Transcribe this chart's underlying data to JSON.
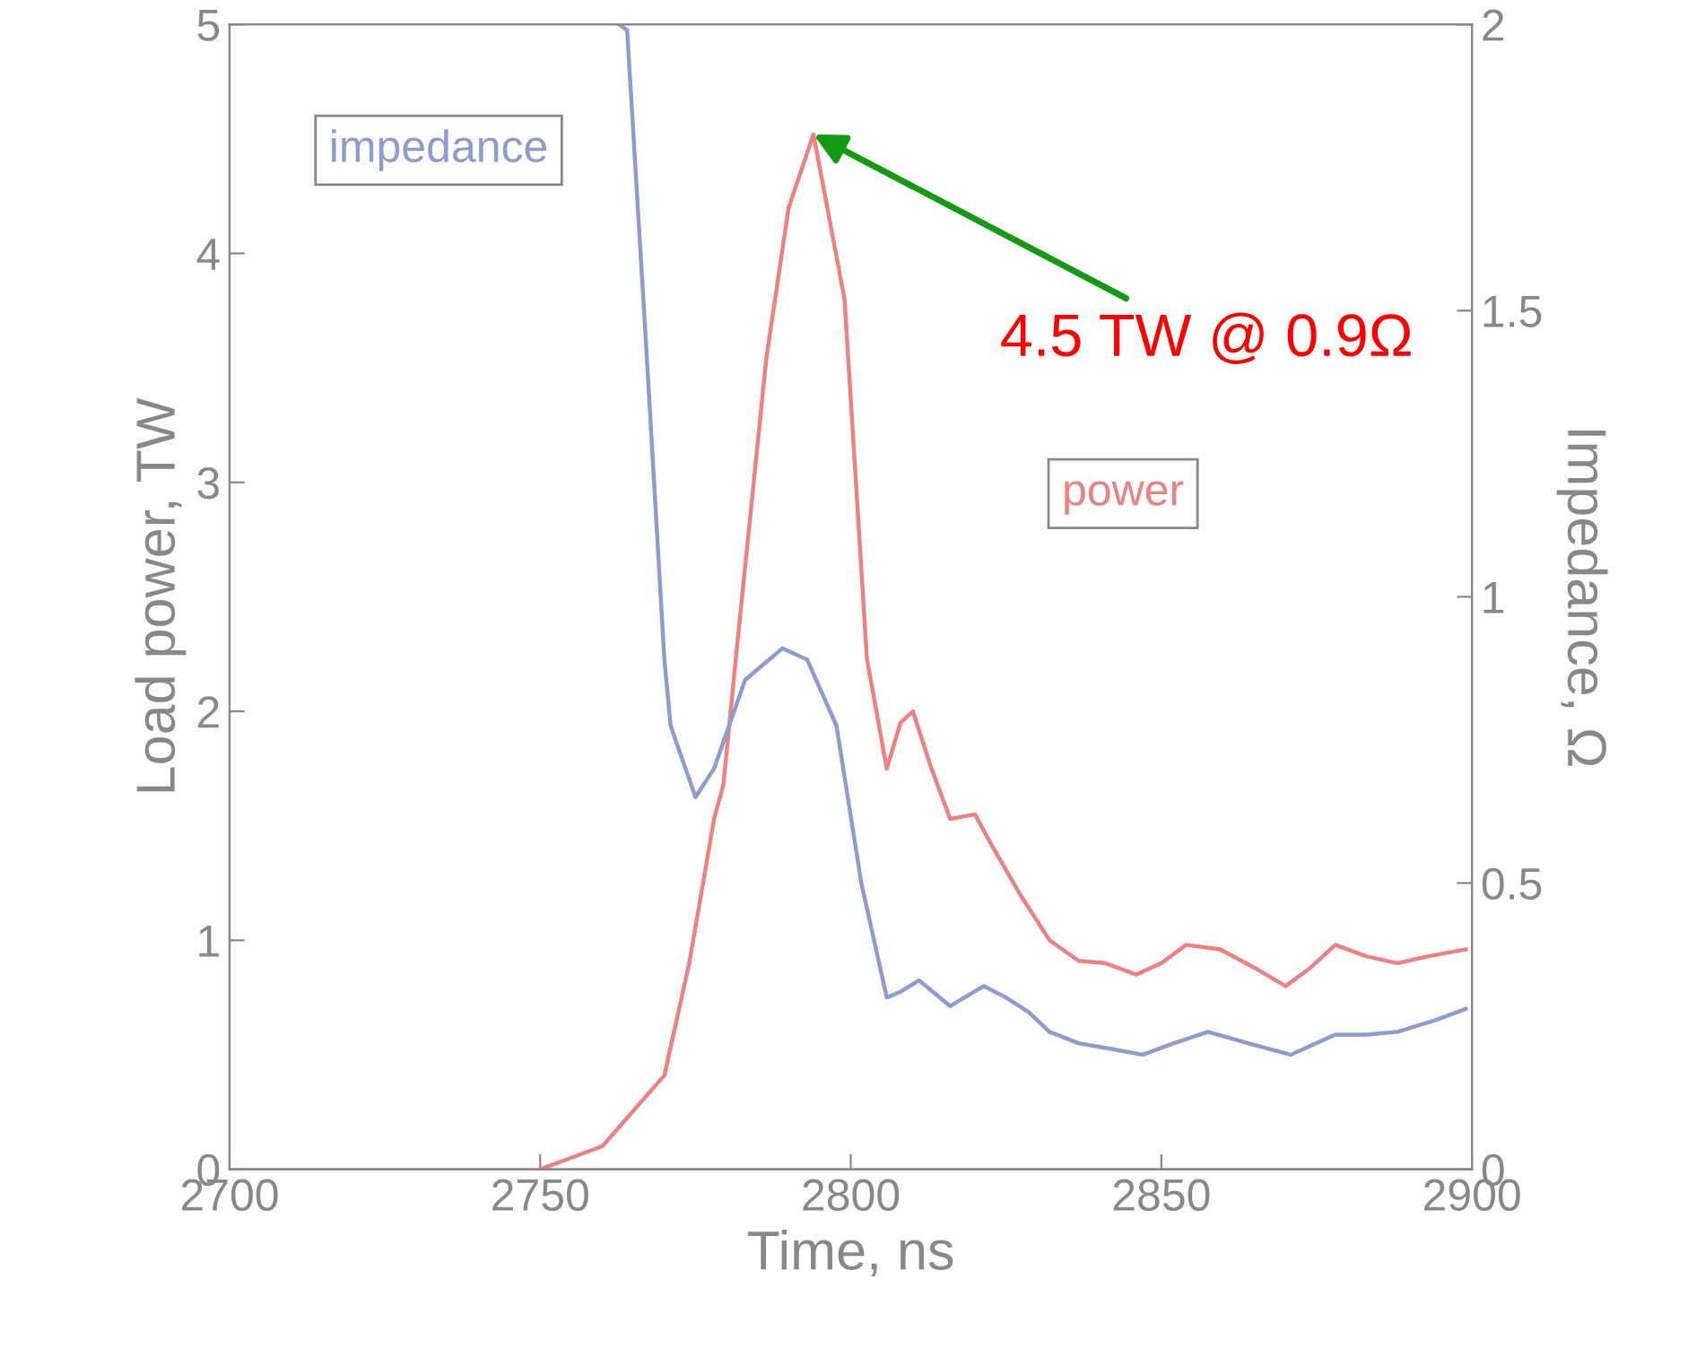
{
  "chart_data": {
    "type": "line",
    "xlabel": "Time, ns",
    "ylabel": "Load power, TW",
    "y2label": "Impedance, Ω",
    "xlim": [
      2700,
      2900
    ],
    "xticks": [
      2700,
      2750,
      2800,
      2850,
      2900
    ],
    "ylim": [
      0,
      5
    ],
    "yticks": [
      0,
      1,
      2,
      3,
      4,
      5
    ],
    "y2lim": [
      0,
      2
    ],
    "y2ticks": [
      0,
      0.5,
      1,
      1.5,
      2
    ],
    "grid": false,
    "legend": false,
    "series": [
      {
        "name": "power",
        "color": "#f08080",
        "x": [
          2750,
          2760,
          2770,
          2774,
          2778,
          2779.5,
          2781.5,
          2786.4,
          2790,
          2794,
          2799,
          2802.6,
          2805.8,
          2808,
          2810,
          2813,
          2816,
          2820,
          2823,
          2827.5,
          2832,
          2836.7,
          2841,
          2846,
          2850,
          2854,
          2859.5,
          2865,
          2870,
          2874,
          2878,
          2883,
          2888,
          2893,
          2899
        ],
        "values": [
          0,
          0.1,
          0.41,
          0.9,
          1.53,
          1.68,
          2.23,
          3.54,
          4.2,
          4.52,
          3.8,
          2.23,
          1.75,
          1.95,
          2.0,
          1.75,
          1.53,
          1.55,
          1.4,
          1.19,
          1.0,
          0.91,
          0.9,
          0.85,
          0.9,
          0.98,
          0.96,
          0.88,
          0.8,
          0.88,
          0.98,
          0.93,
          0.9,
          0.93,
          0.96
        ]
      },
      {
        "name": "impedance",
        "color": "#8c9bd0",
        "axis": "y2",
        "x": [
          2762.7,
          2764,
          2767,
          2770,
          2771,
          2775,
          2778,
          2783,
          2789,
          2793,
          2797.7,
          2801.7,
          2805.8,
          2808,
          2811,
          2816,
          2821.4,
          2825,
          2828.6,
          2832,
          2836.7,
          2842,
          2847,
          2852,
          2857.5,
          2864,
          2870.8,
          2878,
          2883,
          2888,
          2894,
          2899
        ],
        "values": [
          2.0,
          1.99,
          1.45,
          0.89,
          0.775,
          0.65,
          0.7,
          0.855,
          0.91,
          0.89,
          0.775,
          0.5,
          0.3,
          0.31,
          0.33,
          0.285,
          0.32,
          0.3,
          0.275,
          0.24,
          0.22,
          0.21,
          0.2,
          0.22,
          0.24,
          0.22,
          0.2,
          0.235,
          0.235,
          0.24,
          0.26,
          0.28
        ]
      }
    ],
    "annotations": [
      {
        "text": "4.5 TW @ 0.9Ω",
        "x": 2794,
        "y": 4.52
      }
    ]
  }
}
